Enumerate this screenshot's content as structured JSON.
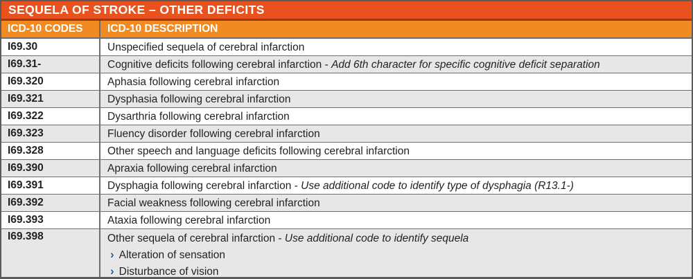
{
  "title": "SEQUELA OF STROKE – OTHER DEFICITS",
  "columns": [
    "ICD-10 CODES",
    "ICD-10 DESCRIPTION"
  ],
  "note_separator": " - ",
  "bullet_glyph": "›",
  "colors": {
    "title_bg": "#E9521E",
    "header_bg": "#F18A21",
    "title_divider": "#993A10",
    "row_bg": "#FFFFFF",
    "row_alt_bg": "#E7E7E8",
    "grid": "#6E6E6E",
    "outer_border": "#5A5A5A",
    "header_text": "#FFFFFF",
    "text": "#231F20",
    "bullet": "#2B5F94"
  },
  "rows": [
    {
      "code": "I69.30",
      "description": "Unspecified sequela of cerebral infarction",
      "note": "",
      "bullets": []
    },
    {
      "code": "I69.31-",
      "description": "Cognitive deficits following cerebral infarction",
      "note": "Add 6th character for specific cognitive deficit separation",
      "bullets": []
    },
    {
      "code": "I69.320",
      "description": "Aphasia following cerebral infarction",
      "note": "",
      "bullets": []
    },
    {
      "code": "I69.321",
      "description": "Dysphasia following cerebral infarction",
      "note": "",
      "bullets": []
    },
    {
      "code": "I69.322",
      "description": "Dysarthria following cerebral infarction",
      "note": "",
      "bullets": []
    },
    {
      "code": "I69.323",
      "description": "Fluency disorder following cerebral infarction",
      "note": "",
      "bullets": []
    },
    {
      "code": "I69.328",
      "description": "Other speech and language deficits following cerebral infarction",
      "note": "",
      "bullets": []
    },
    {
      "code": "I69.390",
      "description": "Apraxia following cerebral infarction",
      "note": "",
      "bullets": []
    },
    {
      "code": "I69.391",
      "description": "Dysphagia following cerebral infarction",
      "note": "Use additional code to identify type of dysphagia (R13.1-)",
      "bullets": []
    },
    {
      "code": "I69.392",
      "description": "Facial weakness following cerebral infarction",
      "note": "",
      "bullets": []
    },
    {
      "code": "I69.393",
      "description": "Ataxia following cerebral infarction",
      "note": "",
      "bullets": []
    },
    {
      "code": "I69.398",
      "description": "Other sequela of cerebral infarction",
      "note": "Use additional code to identify sequela",
      "bullets": [
        "Alteration of sensation",
        "Disturbance of vision"
      ]
    }
  ]
}
